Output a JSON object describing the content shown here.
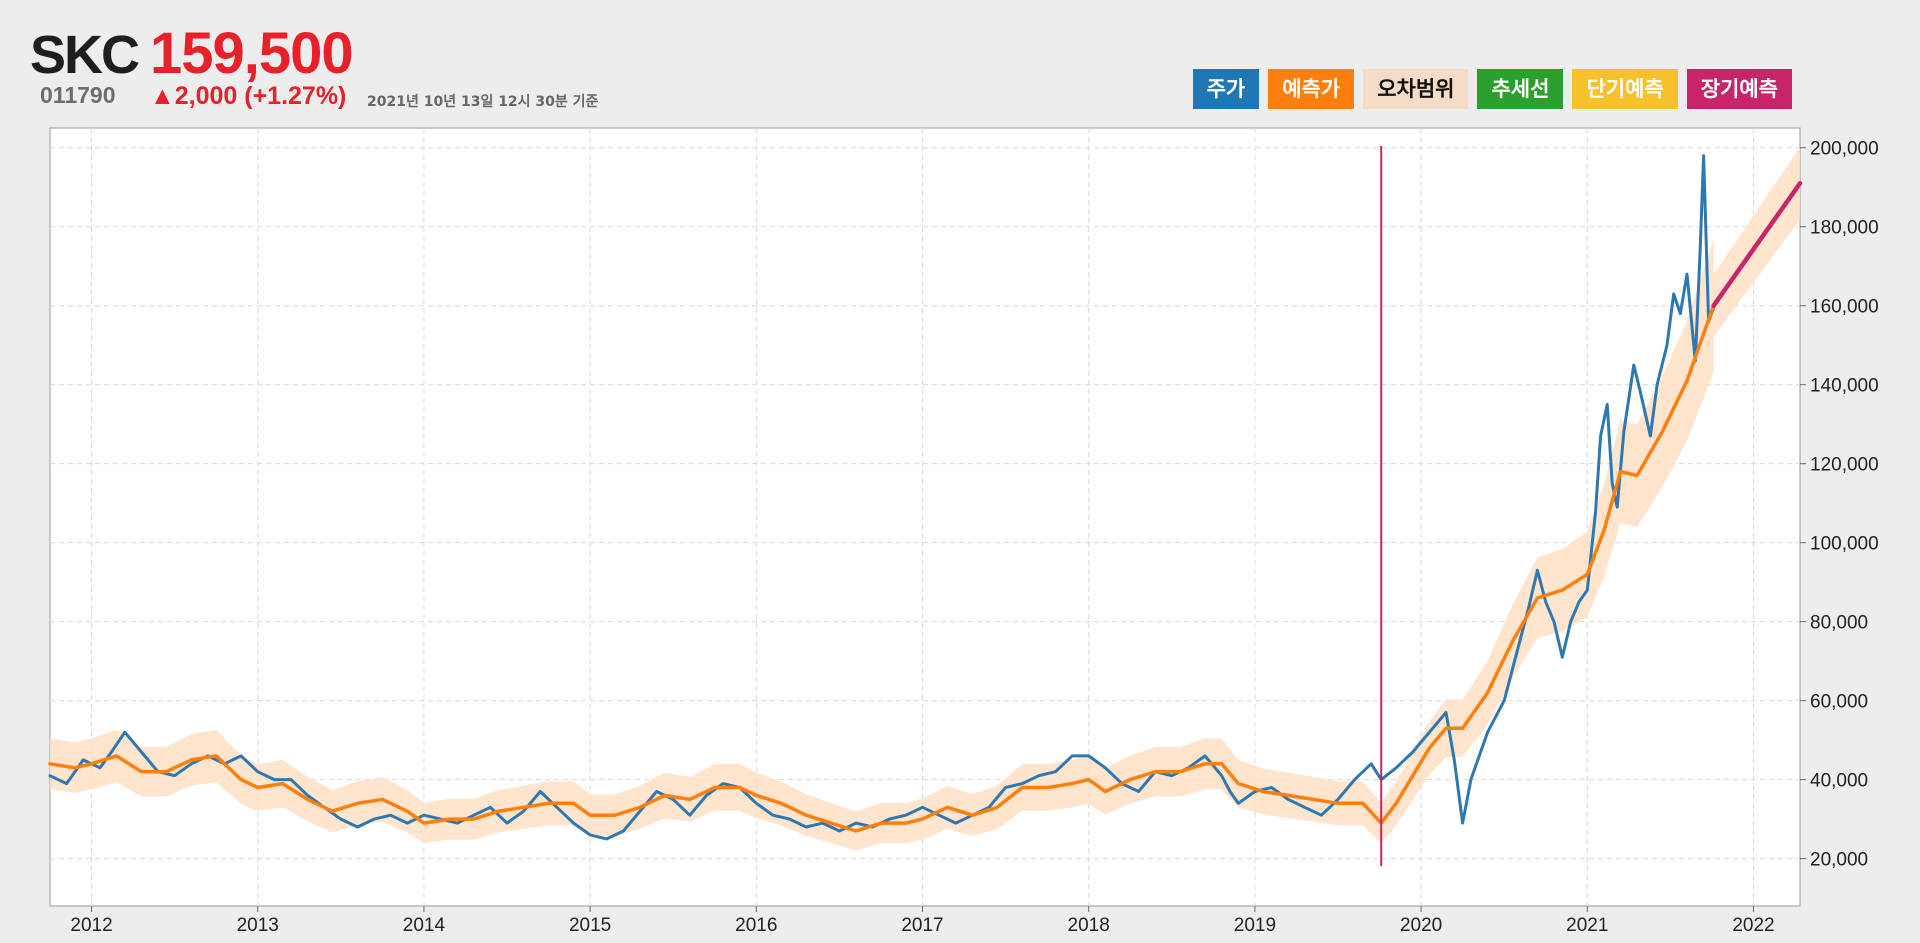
{
  "header": {
    "ticker": "SKC",
    "price": "159,500",
    "code": "011790",
    "change": "▲2,000 (+1.27%)",
    "as_of": "2021년 10년 13일 12시 30분 기준"
  },
  "legend": [
    {
      "label": "주가",
      "color": "#1f77b4",
      "text_color": "#ffffff"
    },
    {
      "label": "예측가",
      "color": "#ff7f0e",
      "text_color": "#ffffff"
    },
    {
      "label": "오차범위",
      "color": "#f5dcc6",
      "text_color": "#111111"
    },
    {
      "label": "추세선",
      "color": "#2ca02c",
      "text_color": "#ffffff"
    },
    {
      "label": "단기예측",
      "color": "#f7c12b",
      "text_color": "#ffffff"
    },
    {
      "label": "장기예측",
      "color": "#c8246a",
      "text_color": "#ffffff"
    }
  ],
  "chart_data": {
    "type": "line",
    "x_unit": "year",
    "xlim": [
      2011.75,
      2022.28
    ],
    "ylim": [
      8000,
      205000
    ],
    "grid": true,
    "x_ticks": [
      2012,
      2013,
      2014,
      2015,
      2016,
      2017,
      2018,
      2019,
      2020,
      2021,
      2022
    ],
    "y_ticks": [
      20000,
      40000,
      60000,
      80000,
      100000,
      120000,
      140000,
      160000,
      180000,
      200000
    ],
    "x_tick_labels": [
      "2012",
      "2013",
      "2014",
      "2015",
      "2016",
      "2017",
      "2018",
      "2019",
      "2020",
      "2021",
      "2022"
    ],
    "y_tick_labels": [
      "20,000",
      "40,000",
      "60,000",
      "80,000",
      "100,000",
      "120,000",
      "140,000",
      "160,000",
      "180,000",
      "200,000"
    ],
    "cutoff_x": 2019.76,
    "series": [
      {
        "name": "주가",
        "color": "#2e77b0",
        "points": [
          [
            2011.75,
            41000
          ],
          [
            2011.85,
            39000
          ],
          [
            2011.95,
            45000
          ],
          [
            2012.05,
            43000
          ],
          [
            2012.12,
            47000
          ],
          [
            2012.2,
            52000
          ],
          [
            2012.3,
            47000
          ],
          [
            2012.4,
            42000
          ],
          [
            2012.5,
            41000
          ],
          [
            2012.6,
            44000
          ],
          [
            2012.7,
            46000
          ],
          [
            2012.8,
            44000
          ],
          [
            2012.9,
            46000
          ],
          [
            2013.0,
            42000
          ],
          [
            2013.1,
            40000
          ],
          [
            2013.2,
            40000
          ],
          [
            2013.3,
            36000
          ],
          [
            2013.4,
            33000
          ],
          [
            2013.5,
            30000
          ],
          [
            2013.6,
            28000
          ],
          [
            2013.7,
            30000
          ],
          [
            2013.8,
            31000
          ],
          [
            2013.9,
            29000
          ],
          [
            2014.0,
            31000
          ],
          [
            2014.1,
            30000
          ],
          [
            2014.2,
            29000
          ],
          [
            2014.3,
            31000
          ],
          [
            2014.4,
            33000
          ],
          [
            2014.5,
            29000
          ],
          [
            2014.6,
            32000
          ],
          [
            2014.7,
            37000
          ],
          [
            2014.8,
            33000
          ],
          [
            2014.9,
            29000
          ],
          [
            2015.0,
            26000
          ],
          [
            2015.1,
            25000
          ],
          [
            2015.2,
            27000
          ],
          [
            2015.3,
            32000
          ],
          [
            2015.4,
            37000
          ],
          [
            2015.5,
            35000
          ],
          [
            2015.6,
            31000
          ],
          [
            2015.7,
            36000
          ],
          [
            2015.8,
            39000
          ],
          [
            2015.9,
            38000
          ],
          [
            2016.0,
            34000
          ],
          [
            2016.1,
            31000
          ],
          [
            2016.2,
            30000
          ],
          [
            2016.3,
            28000
          ],
          [
            2016.4,
            29000
          ],
          [
            2016.5,
            27000
          ],
          [
            2016.6,
            29000
          ],
          [
            2016.7,
            28000
          ],
          [
            2016.8,
            30000
          ],
          [
            2016.9,
            31000
          ],
          [
            2017.0,
            33000
          ],
          [
            2017.1,
            31000
          ],
          [
            2017.2,
            29000
          ],
          [
            2017.3,
            31000
          ],
          [
            2017.4,
            33000
          ],
          [
            2017.5,
            38000
          ],
          [
            2017.6,
            39000
          ],
          [
            2017.7,
            41000
          ],
          [
            2017.8,
            42000
          ],
          [
            2017.9,
            46000
          ],
          [
            2018.0,
            46000
          ],
          [
            2018.1,
            43000
          ],
          [
            2018.2,
            39000
          ],
          [
            2018.3,
            37000
          ],
          [
            2018.4,
            42000
          ],
          [
            2018.5,
            41000
          ],
          [
            2018.6,
            43000
          ],
          [
            2018.7,
            46000
          ],
          [
            2018.8,
            41000
          ],
          [
            2018.85,
            37000
          ],
          [
            2018.9,
            34000
          ],
          [
            2019.0,
            37000
          ],
          [
            2019.1,
            38000
          ],
          [
            2019.2,
            35000
          ],
          [
            2019.3,
            33000
          ],
          [
            2019.4,
            31000
          ],
          [
            2019.5,
            35000
          ],
          [
            2019.6,
            40000
          ],
          [
            2019.7,
            44000
          ],
          [
            2019.76,
            40000
          ],
          [
            2019.85,
            43000
          ],
          [
            2019.95,
            47000
          ],
          [
            2020.05,
            52000
          ],
          [
            2020.15,
            57000
          ],
          [
            2020.2,
            45000
          ],
          [
            2020.25,
            29000
          ],
          [
            2020.3,
            40000
          ],
          [
            2020.4,
            52000
          ],
          [
            2020.5,
            60000
          ],
          [
            2020.55,
            68000
          ],
          [
            2020.65,
            84000
          ],
          [
            2020.7,
            93000
          ],
          [
            2020.75,
            85000
          ],
          [
            2020.8,
            80000
          ],
          [
            2020.85,
            71000
          ],
          [
            2020.9,
            80000
          ],
          [
            2020.95,
            85000
          ],
          [
            2021.0,
            88000
          ],
          [
            2021.05,
            108000
          ],
          [
            2021.08,
            127000
          ],
          [
            2021.12,
            135000
          ],
          [
            2021.15,
            115000
          ],
          [
            2021.18,
            109000
          ],
          [
            2021.22,
            128000
          ],
          [
            2021.28,
            145000
          ],
          [
            2021.32,
            138000
          ],
          [
            2021.38,
            127000
          ],
          [
            2021.42,
            140000
          ],
          [
            2021.48,
            150000
          ],
          [
            2021.52,
            163000
          ],
          [
            2021.56,
            158000
          ],
          [
            2021.6,
            168000
          ],
          [
            2021.65,
            146000
          ],
          [
            2021.68,
            175000
          ],
          [
            2021.7,
            198000
          ],
          [
            2021.73,
            156000
          ],
          [
            2021.76,
            159500
          ]
        ]
      },
      {
        "name": "예측가",
        "color": "#ff7f0e",
        "points": [
          [
            2011.75,
            44000
          ],
          [
            2011.9,
            43000
          ],
          [
            2012.0,
            44000
          ],
          [
            2012.15,
            46000
          ],
          [
            2012.3,
            42000
          ],
          [
            2012.45,
            42000
          ],
          [
            2012.6,
            45000
          ],
          [
            2012.75,
            46000
          ],
          [
            2012.9,
            40000
          ],
          [
            2013.0,
            38000
          ],
          [
            2013.15,
            39000
          ],
          [
            2013.3,
            35000
          ],
          [
            2013.45,
            32000
          ],
          [
            2013.6,
            34000
          ],
          [
            2013.75,
            35000
          ],
          [
            2013.9,
            32000
          ],
          [
            2014.0,
            29000
          ],
          [
            2014.15,
            30000
          ],
          [
            2014.3,
            30000
          ],
          [
            2014.45,
            32000
          ],
          [
            2014.6,
            33000
          ],
          [
            2014.75,
            34000
          ],
          [
            2014.9,
            34000
          ],
          [
            2015.0,
            31000
          ],
          [
            2015.15,
            31000
          ],
          [
            2015.3,
            33000
          ],
          [
            2015.45,
            36000
          ],
          [
            2015.6,
            35000
          ],
          [
            2015.75,
            38000
          ],
          [
            2015.9,
            38000
          ],
          [
            2016.0,
            36000
          ],
          [
            2016.15,
            34000
          ],
          [
            2016.3,
            31000
          ],
          [
            2016.45,
            29000
          ],
          [
            2016.6,
            27000
          ],
          [
            2016.75,
            29000
          ],
          [
            2016.9,
            29000
          ],
          [
            2017.0,
            30000
          ],
          [
            2017.15,
            33000
          ],
          [
            2017.3,
            31000
          ],
          [
            2017.45,
            33000
          ],
          [
            2017.6,
            38000
          ],
          [
            2017.75,
            38000
          ],
          [
            2017.9,
            39000
          ],
          [
            2018.0,
            40000
          ],
          [
            2018.1,
            37000
          ],
          [
            2018.25,
            40000
          ],
          [
            2018.4,
            42000
          ],
          [
            2018.55,
            42000
          ],
          [
            2018.7,
            44000
          ],
          [
            2018.8,
            44000
          ],
          [
            2018.9,
            39000
          ],
          [
            2019.05,
            37000
          ],
          [
            2019.2,
            36000
          ],
          [
            2019.35,
            35000
          ],
          [
            2019.5,
            34000
          ],
          [
            2019.65,
            34000
          ],
          [
            2019.76,
            29000
          ],
          [
            2019.85,
            34000
          ],
          [
            2019.95,
            41000
          ],
          [
            2020.05,
            48000
          ],
          [
            2020.15,
            53000
          ],
          [
            2020.25,
            53000
          ],
          [
            2020.4,
            62000
          ],
          [
            2020.55,
            75000
          ],
          [
            2020.7,
            86000
          ],
          [
            2020.85,
            88000
          ],
          [
            2021.0,
            92000
          ],
          [
            2021.1,
            103000
          ],
          [
            2021.2,
            118000
          ],
          [
            2021.3,
            117000
          ],
          [
            2021.45,
            128000
          ],
          [
            2021.6,
            141000
          ],
          [
            2021.76,
            160000
          ]
        ]
      },
      {
        "name": "장기예측",
        "color": "#c8246a",
        "points": [
          [
            2021.76,
            160000
          ],
          [
            2022.28,
            191000
          ]
        ]
      }
    ]
  }
}
